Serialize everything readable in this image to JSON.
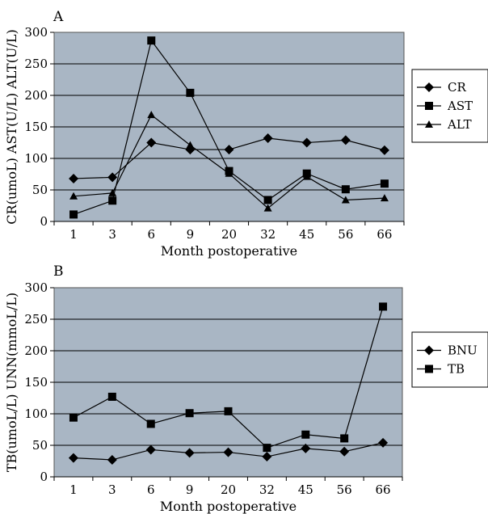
{
  "chart_data": [
    {
      "panel_label": "A",
      "type": "line",
      "categories": [
        "1",
        "3",
        "6",
        "9",
        "20",
        "32",
        "45",
        "56",
        "66"
      ],
      "xlabel": "Month postoperative",
      "ylabel": "CR(umoL) AST(U/L) ALT(U/L)",
      "ylim": [
        0,
        300
      ],
      "yticks": [
        "0",
        "50",
        "100",
        "150",
        "200",
        "250",
        "300"
      ],
      "grid": "horizontal",
      "legend_position": "right",
      "series": [
        {
          "name": "CR",
          "marker": "diamond",
          "values": [
            68,
            70,
            125,
            114,
            114,
            132,
            125,
            129,
            113
          ]
        },
        {
          "name": "AST",
          "marker": "square",
          "values": [
            11,
            33,
            287,
            204,
            80,
            34,
            76,
            51,
            60
          ]
        },
        {
          "name": "ALT",
          "marker": "triangle",
          "values": [
            40,
            45,
            169,
            121,
            76,
            21,
            71,
            34,
            37
          ]
        }
      ]
    },
    {
      "panel_label": "B",
      "type": "line",
      "categories": [
        "1",
        "3",
        "6",
        "9",
        "20",
        "32",
        "45",
        "56",
        "66"
      ],
      "xlabel": "Month postoperative",
      "ylabel": "TB(umoL/L) UNN(mmoL/L)",
      "ylim": [
        0,
        300
      ],
      "yticks": [
        "0",
        "50",
        "100",
        "150",
        "200",
        "250",
        "300"
      ],
      "grid": "horizontal",
      "legend_position": "right",
      "series": [
        {
          "name": "BNU",
          "marker": "diamond",
          "values": [
            30,
            27,
            43,
            38,
            39,
            32,
            45,
            40,
            54
          ]
        },
        {
          "name": "TB",
          "marker": "square",
          "values": [
            94,
            127,
            84,
            101,
            104,
            46,
            67,
            61,
            270
          ]
        }
      ]
    }
  ],
  "colors": {
    "plot_background": "#a9b6c4",
    "line": "#000000",
    "gridline": "#000000"
  }
}
